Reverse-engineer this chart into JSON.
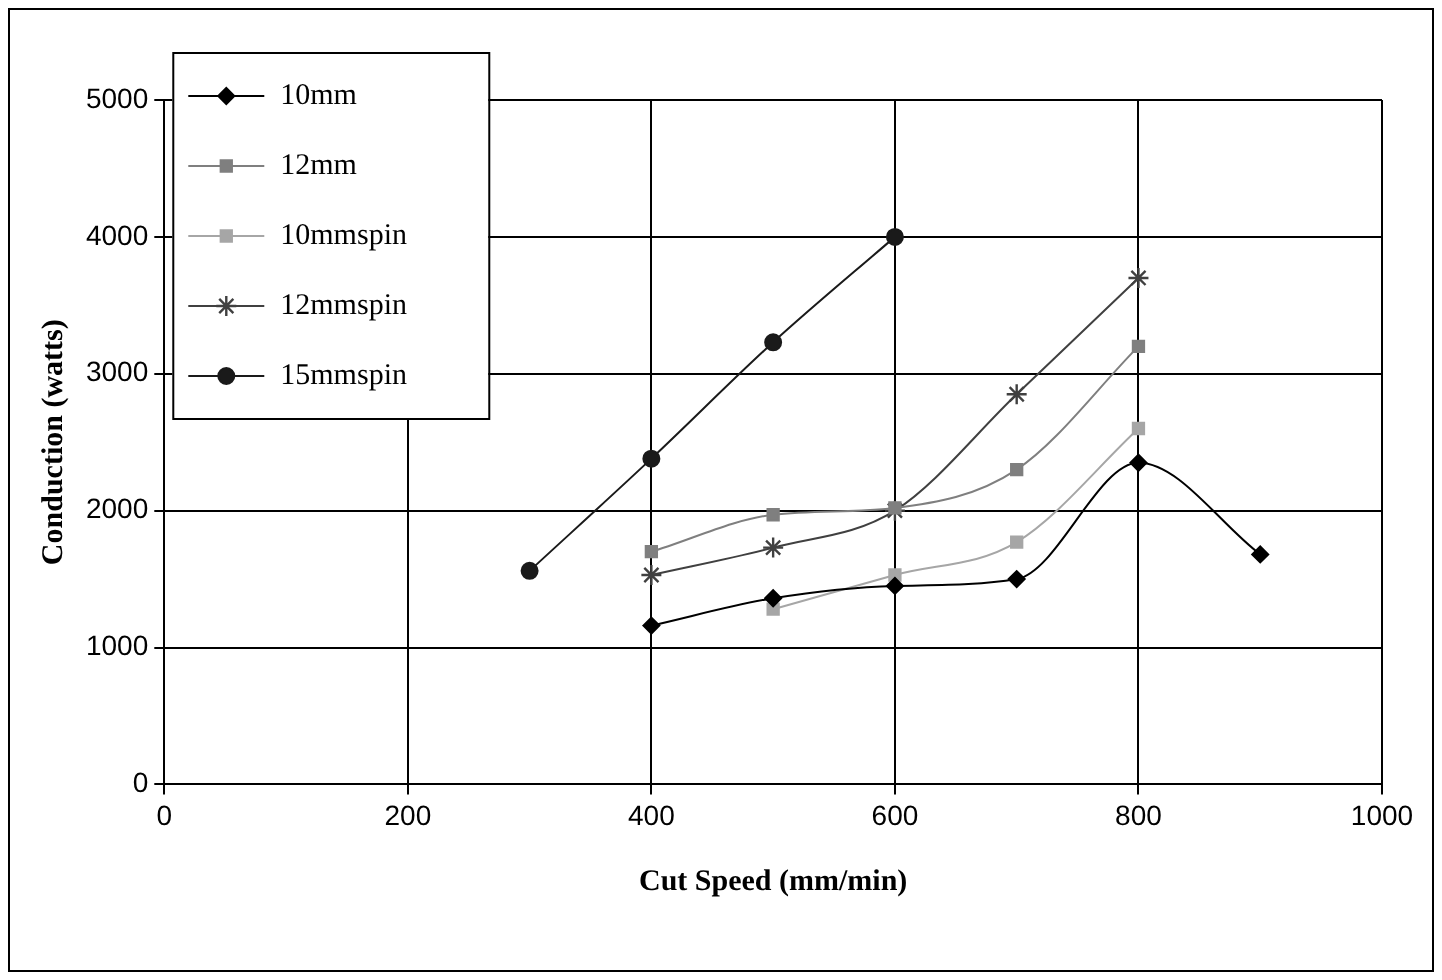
{
  "chart_data": {
    "type": "line",
    "xlabel": "Cut Speed (mm/min)",
    "ylabel": "Conduction (watts)",
    "xlim": [
      0,
      1000
    ],
    "xticks": [
      0,
      200,
      400,
      600,
      800,
      1000
    ],
    "ylim": [
      0,
      5000
    ],
    "yticks": [
      0,
      1000,
      2000,
      3000,
      4000,
      5000
    ],
    "grid": true,
    "legend": "top left",
    "series": [
      {
        "name": "10mm",
        "color": "#000000",
        "marker": "diamond",
        "x": [
          400,
          500,
          600,
          700,
          800,
          900
        ],
        "values": [
          1160,
          1360,
          1450,
          1500,
          2350,
          1680
        ]
      },
      {
        "name": "12mm",
        "color": "#7f7f7f",
        "marker": "square",
        "x": [
          400,
          500,
          600,
          700,
          800
        ],
        "values": [
          1700,
          1970,
          2020,
          2300,
          3200
        ]
      },
      {
        "name": "10mmspin",
        "color": "#a6a6a6",
        "marker": "square",
        "x": [
          500,
          600,
          700,
          800
        ],
        "values": [
          1280,
          1530,
          1770,
          2600
        ]
      },
      {
        "name": "12mmspin",
        "color": "#404040",
        "marker": "cross",
        "x": [
          400,
          500,
          600,
          700,
          800
        ],
        "values": [
          1530,
          1730,
          2000,
          2850,
          3700
        ]
      },
      {
        "name": "15mmspin",
        "color": "#1a1a1a",
        "marker": "circle",
        "x": [
          300,
          400,
          500,
          600
        ],
        "values": [
          1560,
          2380,
          3230,
          4000
        ]
      }
    ]
  }
}
